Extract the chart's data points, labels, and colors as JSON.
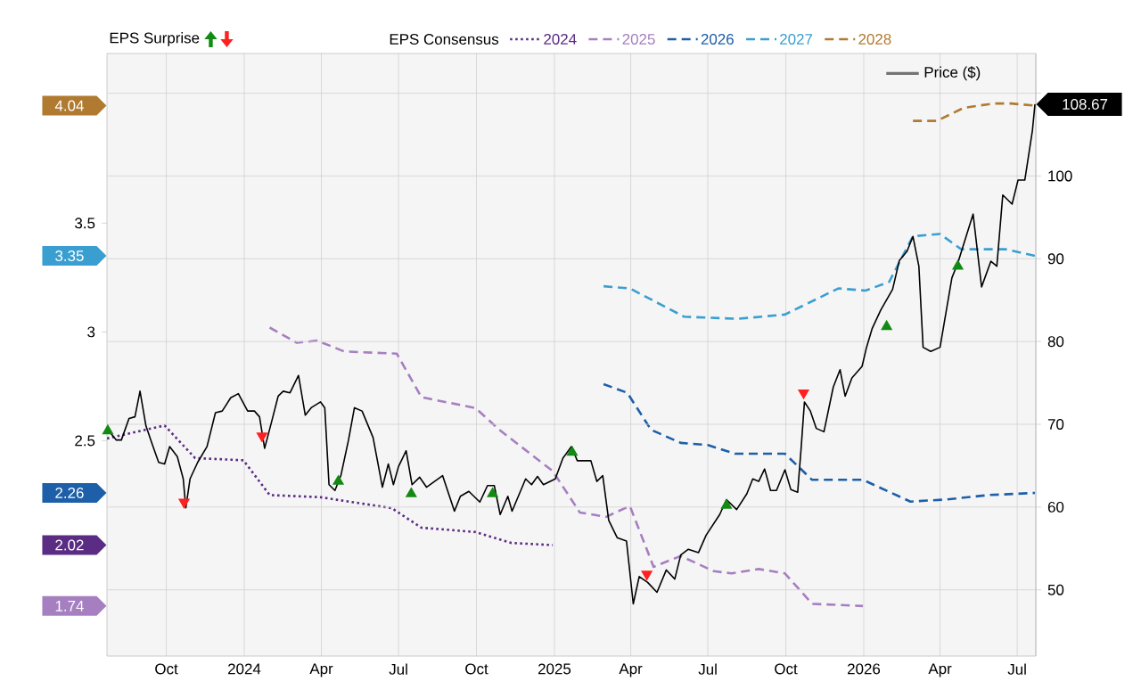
{
  "chart_data": {
    "type": "line",
    "legend_title": "EPS Consensus",
    "annotations": [
      "EPS Surprise",
      "2.02",
      "1.74",
      "2.26",
      "3.35",
      "4.04"
    ],
    "legend": "top",
    "grid": true,
    "xlim": [
      "2023-07-23",
      "2026-07-23"
    ],
    "xticks": [
      {
        "value": "2023-10-01",
        "label": "Oct"
      },
      {
        "value": "2024-01-01",
        "label": "2024"
      },
      {
        "value": "2024-04-01",
        "label": "Apr"
      },
      {
        "value": "2024-07-01",
        "label": "Jul"
      },
      {
        "value": "2024-10-01",
        "label": "Oct"
      },
      {
        "value": "2025-01-01",
        "label": "2025"
      },
      {
        "value": "2025-04-01",
        "label": "Apr"
      },
      {
        "value": "2025-07-01",
        "label": "Jul"
      },
      {
        "value": "2025-10-01",
        "label": "Oct"
      },
      {
        "value": "2026-01-01",
        "label": "2026"
      },
      {
        "value": "2026-04-01",
        "label": "Apr"
      },
      {
        "value": "2026-07-01",
        "label": "Jul"
      }
    ],
    "ylim": [
      1.51,
      4.28
    ],
    "yticks": [
      2.5,
      3,
      3.5
    ],
    "y2lim": [
      42,
      114.8
    ],
    "y2ticks": [
      50,
      60,
      70,
      80,
      90,
      100,
      {
        "value": 110,
        "label": null
      }
    ],
    "series": [
      {
        "name": "2024",
        "color": "#5b2c83",
        "line_style": "dotted",
        "x": [
          "2023-07-23",
          "2023-09-29",
          "2023-11-04",
          "2023-12-31",
          "2024-01-31",
          "2024-03-31",
          "2024-06-23",
          "2024-07-28",
          "2024-09-30",
          "2024-11-11",
          "2024-12-30"
        ],
        "values": [
          2.51,
          2.57,
          2.42,
          2.41,
          2.25,
          2.24,
          2.19,
          2.1,
          2.08,
          2.03,
          2.02
        ]
      },
      {
        "name": "2025",
        "color": "#a67fc1",
        "line_style": "dashed",
        "x": [
          "2024-01-31",
          "2024-03-03",
          "2024-03-27",
          "2024-04-28",
          "2024-06-29",
          "2024-07-28",
          "2024-09-30",
          "2024-10-28",
          "2024-12-30",
          "2025-01-31",
          "2025-03-03",
          "2025-03-31",
          "2025-04-28",
          "2025-05-30",
          "2025-07-08",
          "2025-07-29",
          "2025-08-30",
          "2025-09-30",
          "2025-11-01",
          "2025-12-31"
        ],
        "values": [
          3.02,
          2.95,
          2.96,
          2.91,
          2.9,
          2.7,
          2.65,
          2.55,
          2.36,
          2.17,
          2.15,
          2.2,
          1.92,
          1.97,
          1.9,
          1.89,
          1.91,
          1.89,
          1.75,
          1.74
        ]
      },
      {
        "name": "2026",
        "color": "#1d5fa8",
        "line_style": "dashed",
        "x": [
          "2025-02-28",
          "2025-03-28",
          "2025-04-25",
          "2025-05-30",
          "2025-07-01",
          "2025-08-02",
          "2025-09-30",
          "2025-11-01",
          "2025-12-31",
          "2026-02-25",
          "2026-04-09",
          "2026-05-28",
          "2026-07-22"
        ],
        "values": [
          2.76,
          2.72,
          2.55,
          2.49,
          2.48,
          2.44,
          2.44,
          2.32,
          2.32,
          2.22,
          2.23,
          2.25,
          2.26
        ]
      },
      {
        "name": "2027",
        "color": "#3a9fd0",
        "line_style": "dashed",
        "x": [
          "2025-02-28",
          "2025-03-31",
          "2025-06-03",
          "2025-08-05",
          "2025-09-30",
          "2025-12-02",
          "2026-01-03",
          "2026-01-31",
          "2026-02-28",
          "2026-04-01",
          "2026-04-26",
          "2026-06-17",
          "2026-07-22"
        ],
        "values": [
          3.21,
          3.2,
          3.07,
          3.06,
          3.08,
          3.2,
          3.19,
          3.23,
          3.44,
          3.45,
          3.38,
          3.38,
          3.35
        ]
      },
      {
        "name": "2028",
        "color": "#b07a30",
        "line_style": "dashed",
        "x": [
          "2026-02-28",
          "2026-03-28",
          "2026-04-29",
          "2026-06-03",
          "2026-06-24",
          "2026-07-22"
        ],
        "values": [
          3.97,
          3.97,
          4.03,
          4.05,
          4.05,
          4.04
        ]
      },
      {
        "name": "Price ($)",
        "color": "#000000",
        "axis": "y2",
        "line_style": "solid",
        "x": [
          "2023-07-23",
          "2023-08-03",
          "2023-08-09",
          "2023-08-18",
          "2023-08-25",
          "2023-08-31",
          "2023-09-07",
          "2023-09-14",
          "2023-09-22",
          "2023-09-29",
          "2023-10-05",
          "2023-10-14",
          "2023-10-21",
          "2023-10-24",
          "2023-10-29",
          "2023-11-07",
          "2023-11-18",
          "2023-11-28",
          "2023-12-06",
          "2023-12-16",
          "2023-12-25",
          "2024-01-05",
          "2024-01-13",
          "2024-01-19",
          "2024-01-25",
          "2024-02-02",
          "2024-02-10",
          "2024-02-16",
          "2024-02-24",
          "2024-03-05",
          "2024-03-13",
          "2024-03-20",
          "2024-03-31",
          "2024-04-05",
          "2024-04-10",
          "2024-04-17",
          "2024-04-24",
          "2024-05-03",
          "2024-05-10",
          "2024-05-19",
          "2024-06-01",
          "2024-06-12",
          "2024-06-19",
          "2024-06-25",
          "2024-07-01",
          "2024-07-10",
          "2024-07-17",
          "2024-07-26",
          "2024-08-03",
          "2024-08-22",
          "2024-09-05",
          "2024-09-12",
          "2024-09-22",
          "2024-10-05",
          "2024-10-14",
          "2024-10-22",
          "2024-10-29",
          "2024-11-07",
          "2024-11-12",
          "2024-11-28",
          "2024-12-05",
          "2024-12-12",
          "2024-12-19",
          "2025-01-02",
          "2025-01-11",
          "2025-01-21",
          "2025-01-28",
          "2025-02-13",
          "2025-02-20",
          "2025-02-27",
          "2025-03-06",
          "2025-03-16",
          "2025-03-27",
          "2025-04-04",
          "2025-04-11",
          "2025-04-21",
          "2025-05-02",
          "2025-05-13",
          "2025-05-23",
          "2025-05-30",
          "2025-06-08",
          "2025-06-20",
          "2025-06-29",
          "2025-07-15",
          "2025-07-23",
          "2025-08-04",
          "2025-08-16",
          "2025-08-23",
          "2025-08-30",
          "2025-09-06",
          "2025-09-13",
          "2025-09-20",
          "2025-09-30",
          "2025-10-07",
          "2025-10-15",
          "2025-10-19",
          "2025-10-23",
          "2025-10-30",
          "2025-11-06",
          "2025-11-15",
          "2025-11-26",
          "2025-12-04",
          "2025-12-10",
          "2025-12-18",
          "2025-12-30",
          "2026-01-04",
          "2026-01-11",
          "2026-01-21",
          "2026-02-04",
          "2026-02-12",
          "2026-02-21",
          "2026-02-28",
          "2026-03-07",
          "2026-03-12",
          "2026-03-21",
          "2026-04-01",
          "2026-04-15",
          "2026-04-22",
          "2026-05-10",
          "2026-05-20",
          "2026-05-31",
          "2026-06-07",
          "2026-06-14",
          "2026-06-25",
          "2026-07-02",
          "2026-07-10",
          "2026-07-19",
          "2026-07-22"
        ],
        "values": [
          69.5,
          68.1,
          68.1,
          70.7,
          70.9,
          74.0,
          69.8,
          67.7,
          65.4,
          65.2,
          67.3,
          66.1,
          63.4,
          59.9,
          63.4,
          65.4,
          67.3,
          71.4,
          71.6,
          73.2,
          73.7,
          71.6,
          71.6,
          70.9,
          67.1,
          70.2,
          73.4,
          74.0,
          73.8,
          75.9,
          71.1,
          72.0,
          72.7,
          72.0,
          62.7,
          62.0,
          63.8,
          68.1,
          72.0,
          71.6,
          68.4,
          62.4,
          65.2,
          62.7,
          64.9,
          66.8,
          62.7,
          63.6,
          62.4,
          63.8,
          59.5,
          61.3,
          61.9,
          60.6,
          62.6,
          62.6,
          59.1,
          61.3,
          59.5,
          63.4,
          62.7,
          63.7,
          62.7,
          63.4,
          65.9,
          67.3,
          65.6,
          65.6,
          63.1,
          63.8,
          58.4,
          56.3,
          55.9,
          48.3,
          51.6,
          50.9,
          49.7,
          52.4,
          51.3,
          54.2,
          54.9,
          54.5,
          56.6,
          59.1,
          60.9,
          59.7,
          61.6,
          63.4,
          63.1,
          64.6,
          62.0,
          62.0,
          64.5,
          62.1,
          61.8,
          67.0,
          72.7,
          71.6,
          69.5,
          69.1,
          74.5,
          76.6,
          73.4,
          75.6,
          77.0,
          79.2,
          81.6,
          83.8,
          86.3,
          89.8,
          90.9,
          92.7,
          89.1,
          79.3,
          78.8,
          79.3,
          87.7,
          89.5,
          95.4,
          86.6,
          89.7,
          89.1,
          97.7,
          96.6,
          99.5,
          99.5,
          105.5,
          108.67
        ],
        "value_labels": [
          null,
          null,
          null,
          null,
          null,
          null,
          null,
          null,
          null,
          null,
          null,
          null,
          null,
          null,
          null,
          null,
          null,
          null,
          null,
          null,
          null,
          null,
          null,
          null,
          null,
          null,
          null,
          null,
          null,
          null,
          null,
          null,
          null,
          null,
          null,
          null,
          null,
          null,
          null,
          null,
          null,
          null,
          null,
          null,
          null,
          null,
          null,
          null,
          null,
          null,
          null,
          null,
          null,
          null,
          null,
          null,
          null,
          null,
          null,
          null,
          null,
          null,
          null,
          null,
          null,
          null,
          null,
          null,
          null,
          null,
          null,
          null,
          null,
          null,
          null,
          null,
          null,
          null,
          null,
          null,
          null,
          null,
          null,
          null,
          null,
          null,
          null,
          null,
          null,
          null,
          null,
          null,
          null,
          null,
          null,
          null,
          null,
          null,
          null,
          null,
          null,
          null,
          null,
          null,
          null,
          null,
          null,
          null,
          null,
          null,
          null,
          null,
          null,
          null,
          null,
          null,
          null,
          null,
          null,
          null,
          null,
          null,
          null,
          null,
          null,
          null,
          null,
          "108.67"
        ]
      },
      {
        "type": "scatter",
        "color": "#138a13",
        "axis": "y2",
        "marker": "triangle",
        "x": [
          "2023-07-24",
          "2024-04-21",
          "2024-07-16",
          "2024-10-20",
          "2025-01-22",
          "2025-07-23",
          "2026-01-28",
          "2026-04-22"
        ],
        "values": [
          69.2,
          63.1,
          61.6,
          61.6,
          66.6,
          60.2,
          81.8,
          89.1
        ]
      },
      {
        "type": "scatter",
        "color": "#ff2020",
        "axis": "y2",
        "marker": "triangle-down",
        "x": [
          "2023-10-22",
          "2024-01-22",
          "2025-04-20",
          "2025-10-22"
        ],
        "values": [
          60.6,
          68.6,
          51.9,
          73.8
        ]
      }
    ]
  }
}
